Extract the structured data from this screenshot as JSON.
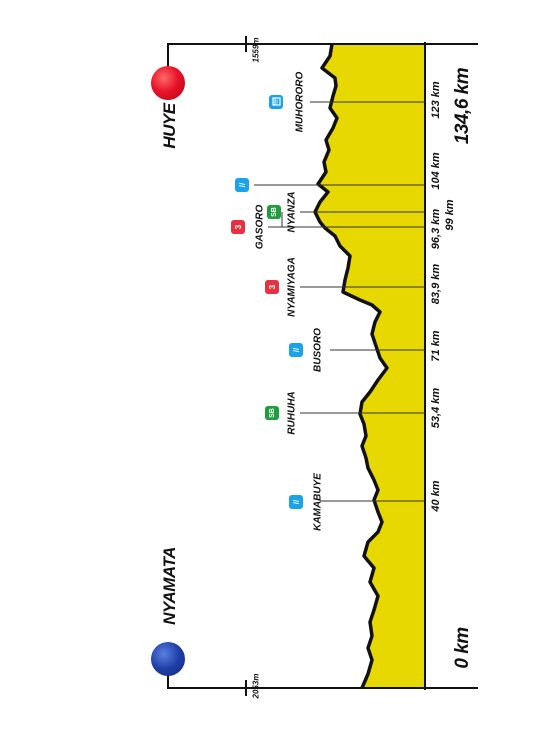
{
  "stage": {
    "start_city": "NYAMATA",
    "finish_city": "HUYE",
    "start_km": "0 km",
    "total_km": "134,6 km",
    "start_altitude": "2053m",
    "finish_altitude": "1559m",
    "colors": {
      "start": "#1f3fa8",
      "finish": "#e8142a",
      "profile_fill": "#e6d800",
      "outline": "#111111"
    }
  },
  "points": [
    {
      "km": "40 km",
      "name": "KAMABUYE",
      "icon": "sprint-icon",
      "type": "sprint"
    },
    {
      "km": "53,4 km",
      "name": "RUHUHA",
      "icon": "bonus-sprint-icon",
      "type": "bonus",
      "badge": "SB"
    },
    {
      "km": "71 km",
      "name": "BUSORO",
      "icon": "sprint-icon",
      "type": "sprint"
    },
    {
      "km": "83,9 km",
      "name": "NYAMIYAGA",
      "icon": "climb-icon",
      "type": "climb",
      "badge": "3"
    },
    {
      "km": "96,3 km",
      "name": "GASORO",
      "icon": "climb-icon",
      "type": "climb",
      "badge": "3"
    },
    {
      "km": "99 km",
      "name": "NYANZA",
      "icon": "bonus-sprint-icon",
      "type": "bonus",
      "badge": "SB"
    },
    {
      "km": "104 km",
      "name": "",
      "icon": "sprint-icon",
      "type": "sprint"
    },
    {
      "km": "123 km",
      "name": "MUHORORO",
      "icon": "feed-zone-icon",
      "type": "feed"
    }
  ]
}
